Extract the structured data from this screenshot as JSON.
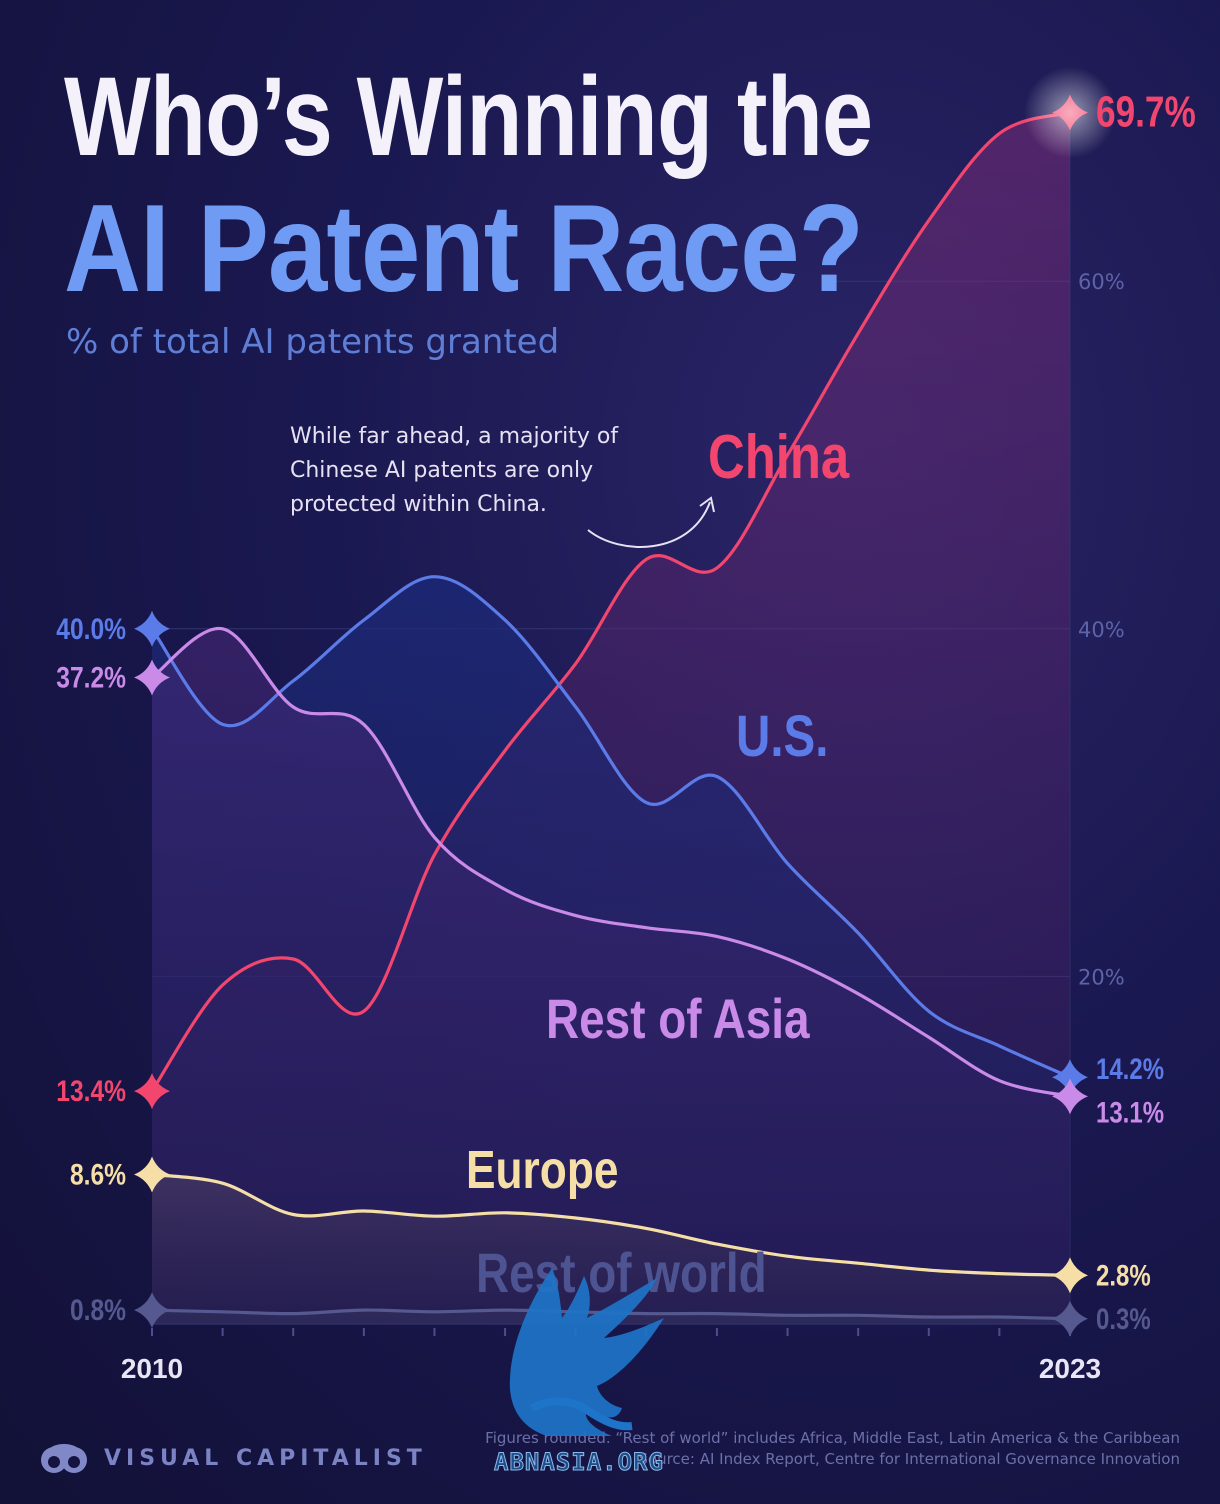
{
  "header": {
    "title_line1": "Who’s Winning the",
    "title_line2": "AI Patent Race?",
    "subtitle": "% of total AI patents granted"
  },
  "annotation": {
    "text": "While far ahead, a majority of Chinese AI patents are only protected within China."
  },
  "chart_data": {
    "type": "line",
    "title": "Who’s Winning the AI Patent Race?",
    "subtitle": "% of total AI patents granted",
    "xlim": [
      2010,
      2023
    ],
    "ylim": [
      0,
      70
    ],
    "y_ticks": [
      20,
      40,
      60
    ],
    "y_tick_labels": [
      "20%",
      "40%",
      "60%"
    ],
    "x_tick_labels": [
      "2010",
      "2023"
    ],
    "grid": true,
    "legend": "inline labels",
    "x": [
      2010,
      2011,
      2012,
      2013,
      2014,
      2015,
      2016,
      2017,
      2018,
      2019,
      2020,
      2021,
      2022,
      2023
    ],
    "series": [
      {
        "name": "China",
        "color": "#f2466f",
        "values": [
          13.4,
          19.5,
          21.0,
          18.0,
          27.0,
          33.0,
          38.0,
          44.0,
          43.5,
          50.0,
          57.0,
          63.5,
          68.5,
          69.7
        ],
        "start_label": "13.4%",
        "end_label": "69.7%"
      },
      {
        "name": "U.S.",
        "color": "#5b7be8",
        "values": [
          40.0,
          34.5,
          37.0,
          40.5,
          43.0,
          40.5,
          35.5,
          30.0,
          31.5,
          26.5,
          22.5,
          18.0,
          16.0,
          14.2
        ],
        "start_label": "40.0%",
        "end_label": "14.2%"
      },
      {
        "name": "Rest of Asia",
        "color": "#c98ae8",
        "values": [
          37.2,
          40.0,
          35.5,
          34.5,
          28.0,
          25.0,
          23.5,
          22.8,
          22.3,
          21.0,
          19.0,
          16.5,
          14.0,
          13.1
        ],
        "start_label": "37.2%",
        "end_label": "13.1%"
      },
      {
        "name": "Europe",
        "color": "#f6dfa6",
        "values": [
          8.6,
          8.1,
          6.3,
          6.5,
          6.2,
          6.4,
          6.1,
          5.5,
          4.6,
          3.9,
          3.5,
          3.1,
          2.9,
          2.8
        ],
        "start_label": "8.6%",
        "end_label": "2.8%"
      },
      {
        "name": "Rest of world",
        "color": "#55598f",
        "values": [
          0.8,
          0.7,
          0.6,
          0.8,
          0.7,
          0.8,
          0.7,
          0.6,
          0.6,
          0.5,
          0.5,
          0.4,
          0.4,
          0.3
        ],
        "start_label": "0.8%",
        "end_label": "0.3%"
      }
    ]
  },
  "footer": {
    "brand": "VISUAL CAPITALIST",
    "note_line1": "Figures rounded. “Rest of world” includes Africa, Middle East, Latin America & the Caribbean",
    "note_line2": "Source: AI Index Report, Centre for International Governance Innovation"
  },
  "watermark": {
    "text": "ABNASIA.ORG"
  }
}
